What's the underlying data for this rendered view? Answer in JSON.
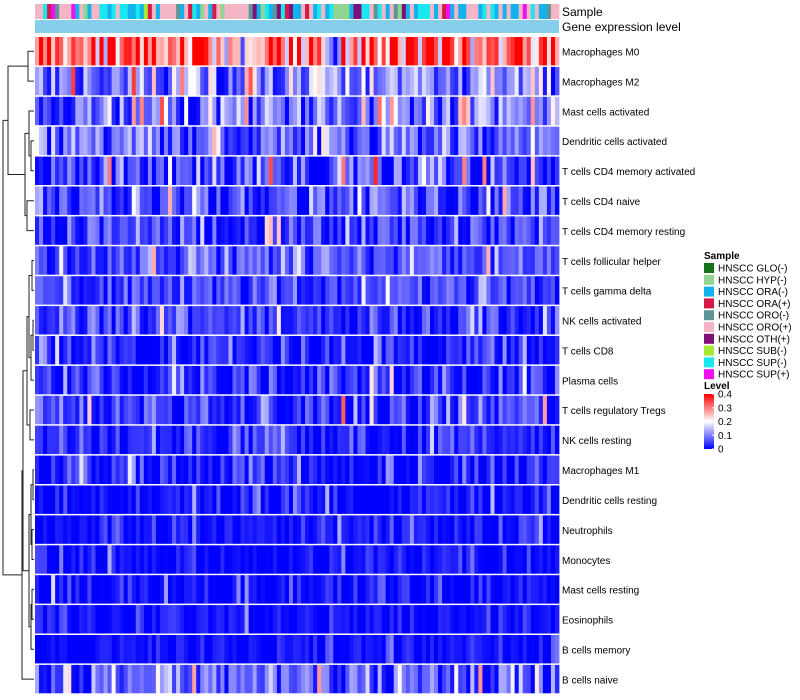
{
  "chart_data": {
    "type": "heatmap",
    "annotation_labels": [
      "Sample",
      "Gene expression level"
    ],
    "rows": [
      {
        "label": "Macrophages M0",
        "mean": 0.3,
        "spread": 0.14
      },
      {
        "label": "Macrophages M2",
        "mean": 0.1,
        "spread": 0.08
      },
      {
        "label": "Mast cells activated",
        "mean": 0.09,
        "spread": 0.09
      },
      {
        "label": "Dendritic cells activated",
        "mean": 0.07,
        "spread": 0.08
      },
      {
        "label": "T cells CD4 memory activated",
        "mean": 0.06,
        "spread": 0.09
      },
      {
        "label": "T cells CD4 naive",
        "mean": 0.05,
        "spread": 0.08
      },
      {
        "label": "T cells CD4 memory resting",
        "mean": 0.03,
        "spread": 0.07
      },
      {
        "label": "T cells follicular helper",
        "mean": 0.06,
        "spread": 0.05
      },
      {
        "label": "T cells gamma delta",
        "mean": 0.05,
        "spread": 0.05
      },
      {
        "label": "NK cells activated",
        "mean": 0.04,
        "spread": 0.05
      },
      {
        "label": "T cells CD8",
        "mean": 0.03,
        "spread": 0.05
      },
      {
        "label": "Plasma cells",
        "mean": 0.03,
        "spread": 0.06
      },
      {
        "label": "T cells regulatory  Tregs",
        "mean": 0.04,
        "spread": 0.07
      },
      {
        "label": "NK cells resting",
        "mean": 0.03,
        "spread": 0.05
      },
      {
        "label": "Macrophages M1",
        "mean": 0.02,
        "spread": 0.06
      },
      {
        "label": "Dendritic cells resting",
        "mean": 0.01,
        "spread": 0.04
      },
      {
        "label": "Neutrophils",
        "mean": 0.01,
        "spread": 0.04
      },
      {
        "label": "Monocytes",
        "mean": 0.01,
        "spread": 0.04
      },
      {
        "label": "Mast cells resting",
        "mean": 0.01,
        "spread": 0.04
      },
      {
        "label": "Eosinophils",
        "mean": 0.01,
        "spread": 0.03
      },
      {
        "label": "B cells memory",
        "mean": 0.01,
        "spread": 0.03
      },
      {
        "label": "B cells naive",
        "mean": 0.07,
        "spread": 0.08
      }
    ],
    "n_samples": 130,
    "sample_legend": {
      "title": "Sample",
      "items": [
        {
          "label": "HNSCC GLO(-)",
          "color": "#137316"
        },
        {
          "label": "HNSCC HYP(-)",
          "color": "#92d492"
        },
        {
          "label": "HNSCC ORA(-)",
          "color": "#12b2ec"
        },
        {
          "label": "HNSCC ORA(+)",
          "color": "#d61a47"
        },
        {
          "label": "HNSCC ORO(-)",
          "color": "#5e9598"
        },
        {
          "label": "HNSCC ORO(+)",
          "color": "#f4b5c6"
        },
        {
          "label": "HNSCC OTH(+)",
          "color": "#800f7a"
        },
        {
          "label": "HNSCC SUB(-)",
          "color": "#a7ea33"
        },
        {
          "label": "HNSCC SUP(-)",
          "color": "#19e8ee"
        },
        {
          "label": "HNSCC SUP(+)",
          "color": "#f00ff0"
        }
      ],
      "mix": [
        0.02,
        0.06,
        0.3,
        0.03,
        0.06,
        0.32,
        0.02,
        0.02,
        0.12,
        0.05
      ]
    },
    "level_legend": {
      "title": "Level",
      "ticks": [
        "0.4",
        "0.3",
        "0.2",
        "0.1",
        "0"
      ],
      "range": [
        0,
        0.4
      ]
    },
    "gene_expression_color": "#87ceeb",
    "color_scale": {
      "low": "#0000ff",
      "mid": "#ffffff",
      "high": "#ff0000"
    }
  }
}
